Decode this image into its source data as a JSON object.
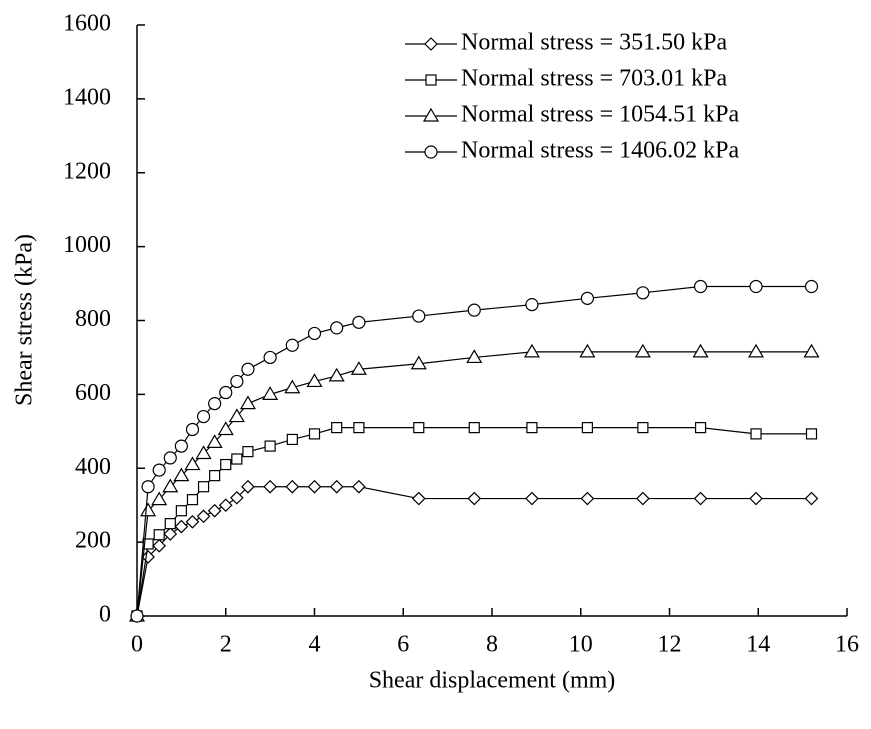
{
  "chart_data": {
    "type": "line",
    "x_label": "Shear displacement (mm)",
    "y_label": "Shear stress (kPa)",
    "x": [
      0,
      0.25,
      0.5,
      0.75,
      1,
      1.25,
      1.5,
      1.75,
      2,
      2.25,
      2.5,
      3,
      3.5,
      4,
      4.5,
      5,
      6.35,
      7.6,
      8.9,
      10.15,
      11.4,
      12.7,
      13.95,
      15.2
    ],
    "series": [
      {
        "name": "Normal stress = 351.50 kPa",
        "color": "#000000",
        "marker": "diamond",
        "values": [
          0,
          160,
          190,
          222,
          242,
          255,
          270,
          285,
          300,
          320,
          350,
          350,
          350,
          350,
          350,
          350,
          318,
          318,
          318,
          318,
          318,
          318,
          318,
          318
        ]
      },
      {
        "name": "Normal stress = 703.01 kPa",
        "color": "#000000",
        "marker": "square",
        "values": [
          0,
          195,
          220,
          250,
          285,
          315,
          350,
          380,
          410,
          425,
          445,
          460,
          478,
          493,
          510,
          510,
          510,
          510,
          510,
          510,
          510,
          510,
          493,
          493
        ]
      },
      {
        "name": "Normal stress = 1054.51 kPa",
        "color": "#000000",
        "marker": "triangle",
        "values": [
          0,
          285,
          315,
          350,
          380,
          410,
          440,
          470,
          505,
          540,
          575,
          600,
          618,
          635,
          650,
          668,
          683,
          700,
          715,
          715,
          715,
          715,
          715,
          715
        ]
      },
      {
        "name": "Normal stress = 1406.02 kPa",
        "color": "#000000",
        "marker": "circle",
        "values": [
          0,
          350,
          395,
          428,
          460,
          505,
          540,
          575,
          605,
          635,
          668,
          700,
          733,
          765,
          780,
          795,
          812,
          828,
          843,
          860,
          875,
          892,
          892,
          892
        ]
      }
    ],
    "xlim": [
      0,
      16
    ],
    "xticks": [
      0,
      2,
      4,
      6,
      8,
      10,
      12,
      14,
      16
    ],
    "ylim": [
      0,
      1600
    ],
    "yticks": [
      0,
      200,
      400,
      600,
      800,
      1000,
      1200,
      1400,
      1600
    ],
    "legend": "top-right"
  }
}
